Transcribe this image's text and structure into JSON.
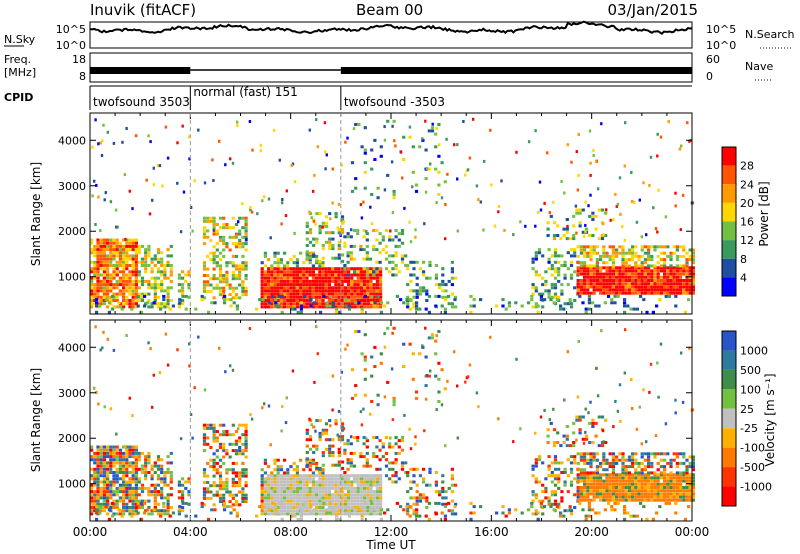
{
  "header": {
    "radar": "Inuvik (fitACF)",
    "beam": "Beam 00",
    "date": "03/Jan/2015"
  },
  "sidepanel": {
    "nsky_label": "N.Sky",
    "nsky_top": "10^5",
    "nsky_bottom": "10^0",
    "nsearch_label": "N.Search",
    "nsearch_top": "10^5",
    "nsearch_bottom": "10^0",
    "freq_label_1": "Freq.",
    "freq_label_2": "[MHz]",
    "freq_top": "18",
    "freq_bottom": "8",
    "nave_label": "Nave",
    "nave_top": "60",
    "nave_bottom": "0",
    "cpid_label": "CPID"
  },
  "cpid_segments": [
    {
      "label": "twofsound 3503",
      "start": 0,
      "end": 4
    },
    {
      "label": "normal (fast) 151",
      "start": 4,
      "end": 10
    },
    {
      "label": "twofsound -3503",
      "start": 10,
      "end": 24
    }
  ],
  "colors": {
    "power": [
      "#0000ff",
      "#1f4fa0",
      "#3a9a5a",
      "#74c043",
      "#ffd700",
      "#ff9b00",
      "#ff5500",
      "#ff0000"
    ],
    "velocity": [
      "#2a55c8",
      "#2e7a9e",
      "#3e8e4a",
      "#74c043",
      "#c0c0c0",
      "#ffb000",
      "#ff7a00",
      "#ff3300",
      "#ff0000"
    ]
  },
  "chart_data": [
    {
      "type": "heatmap",
      "name": "power",
      "ylabel": "Slant Range [km]",
      "xlabel": "",
      "x_range_hours": [
        0,
        24
      ],
      "ylim": [
        180,
        4600
      ],
      "yticks": [
        "1000",
        "2000",
        "3000",
        "4000"
      ],
      "xticks": [
        "00:00",
        "04:00",
        "08:00",
        "12:00",
        "16:00",
        "20:00",
        "00:00"
      ],
      "colorbar_label": "Power [dB]",
      "colorbar_ticks": [
        "4",
        "8",
        "12",
        "16",
        "20",
        "24",
        "28"
      ],
      "colorbar_range": [
        0,
        32
      ]
    },
    {
      "type": "heatmap",
      "name": "velocity",
      "ylabel": "Slant Range [km]",
      "xlabel": "Time UT",
      "x_range_hours": [
        0,
        24
      ],
      "ylim": [
        180,
        4600
      ],
      "yticks": [
        "1000",
        "2000",
        "3000",
        "4000"
      ],
      "xticks": [
        "00:00",
        "04:00",
        "08:00",
        "12:00",
        "16:00",
        "20:00",
        "00:00"
      ],
      "colorbar_label": "Velocity [m s⁻¹]",
      "colorbar_ticks": [
        "1000",
        "500",
        "100",
        "25",
        "-25",
        "-100",
        "-500",
        "-1000"
      ]
    }
  ]
}
